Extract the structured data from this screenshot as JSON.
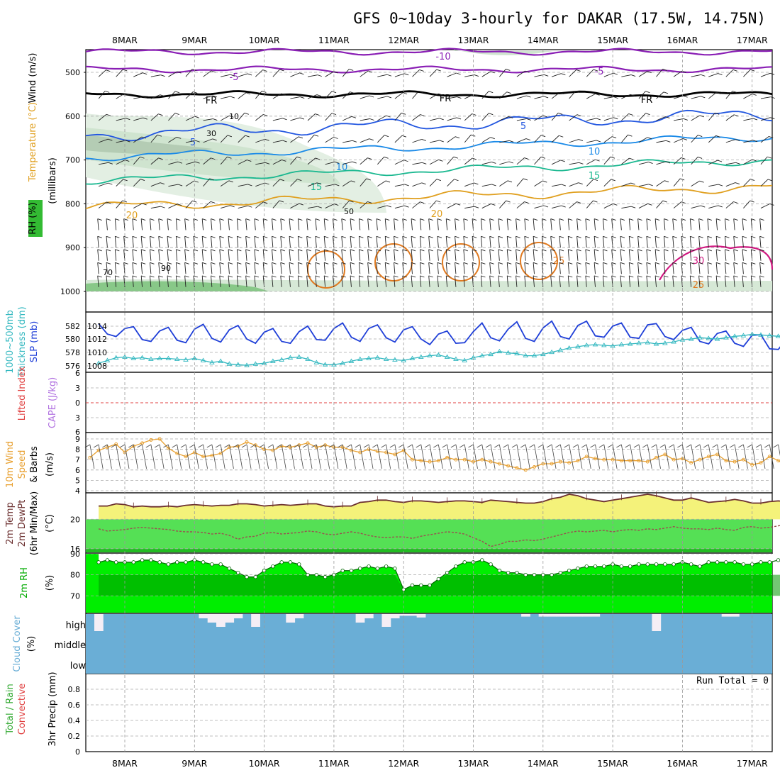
{
  "title": "GFS 0~10day 3-hourly for DAKAR (17.5W, 14.75N)",
  "colors": {
    "slp": "#1f3fd8",
    "thickness": "#33b8c0",
    "lifted": "#e04040",
    "cape": "#b070e0",
    "wind10m": "#e8a030",
    "temp": "#6b2f2f",
    "dewpt": "#9a5050",
    "tempFill": "#f4f27a",
    "rhFill": "#00ee00",
    "rhDark": "#009900",
    "cloud": "#6aaed6",
    "cloudGap": "#f5eef5",
    "iso_m10": "#8a1fb5",
    "iso_m5": "#8a1fb5",
    "iso_0": "#000000",
    "iso_5": "#2256e0",
    "iso_10": "#1a8ae8",
    "iso_15": "#1ab890",
    "iso_20": "#e0a020",
    "iso_25": "#e07a20",
    "iso_30": "#d01880"
  },
  "dates": [
    "8MAR",
    "9MAR",
    "10MAR",
    "11MAR",
    "12MAR",
    "13MAR",
    "14MAR",
    "15MAR",
    "16MAR",
    "17MAR"
  ],
  "panels": {
    "upper": {
      "labels": [
        "Wind (m/s)",
        "Temperature (°C)",
        "RH (%)",
        "(millibars)"
      ],
      "ticks": [
        "500",
        "600",
        "700",
        "800",
        "900",
        "1000"
      ],
      "isotherm_labels": [
        "-10",
        "-5",
        "FR",
        "5",
        "10",
        "15",
        "20",
        "25",
        "30"
      ],
      "rh_labels": [
        "10",
        "30",
        "50",
        "70",
        "90"
      ]
    },
    "slp": {
      "labels": [
        "1000~500mb",
        "Thickness (dm)",
        "SLP (mb)"
      ],
      "left_ticks": [
        "582",
        "580",
        "578",
        "576"
      ],
      "right_ticks": [
        "1014",
        "1012",
        "1010",
        "1008"
      ]
    },
    "li": {
      "labels": [
        "Lifted Index",
        "CAPE (J/kg)"
      ],
      "ticks": [
        "6",
        "3",
        "0",
        "3",
        "6"
      ]
    },
    "wind": {
      "labels": [
        "10m Wind",
        "Speed",
        "& Barbs",
        "(m/s)"
      ],
      "ticks": [
        "9",
        "8",
        "7",
        "6",
        "5",
        "4"
      ]
    },
    "temp": {
      "labels": [
        "2m Temp",
        "2m DewPt",
        "(6hr Min/Max)",
        "(°C)"
      ],
      "ticks": [
        "20",
        "16"
      ]
    },
    "rh": {
      "labels": [
        "2m RH",
        "(%)"
      ],
      "ticks": [
        "90",
        "80",
        "70"
      ]
    },
    "cloud": {
      "labels": [
        "Cloud Cover",
        "(%)"
      ],
      "ticks": [
        "high",
        "middle",
        "low"
      ]
    },
    "precip": {
      "labels": [
        "Total / Rain",
        "Convective",
        "3hr Precip (mm)"
      ],
      "ticks": [
        "0.8",
        "0.6",
        "0.4",
        "0.2",
        "0"
      ],
      "run_total": "Run Total = 0"
    }
  },
  "chart_data": [
    {
      "type": "line",
      "title": "Sea level pressure / 1000~500mb thickness",
      "x_unit": "3-hourly steps from 7MAR 12Z",
      "series": [
        {
          "name": "SLP (mb)",
          "axis": "right",
          "ylim": [
            1007,
            1016
          ],
          "values": [
            1014.8,
            1013.1,
            1012.7,
            1014.0,
            1014.3,
            1012.2,
            1011.9,
            1013.6,
            1014.2,
            1012.1,
            1011.7,
            1013.9,
            1014.7,
            1012.4,
            1011.8,
            1013.8,
            1014.5,
            1012.3,
            1011.6,
            1013.4,
            1014.0,
            1011.9,
            1011.6,
            1013.5,
            1014.4,
            1012.2,
            1012.1,
            1014.0,
            1014.9,
            1012.6,
            1011.9,
            1014.0,
            1014.6,
            1012.5,
            1011.8,
            1013.8,
            1014.3,
            1012.3,
            1011.4,
            1013.1,
            1013.6,
            1011.6,
            1011.7,
            1013.5,
            1014.9,
            1012.5,
            1012.0,
            1013.9,
            1015.1,
            1012.4,
            1011.9,
            1014.1,
            1015.2,
            1012.7,
            1012.3,
            1014.5,
            1015.2,
            1012.8,
            1012.6,
            1014.4,
            1014.9,
            1012.6,
            1012.4,
            1014.6,
            1014.8,
            1012.7,
            1012.2,
            1013.7,
            1014.2,
            1011.9,
            1011.5,
            1013.2,
            1013.6,
            1011.6,
            1011.1,
            1012.9,
            1013.0,
            1010.7,
            1010.6,
            1012.4,
            1012.1,
            1009.7,
            1009.1,
            1010.4,
            1010.0,
            1008.7,
            1008.0,
            1009.9,
            1010.6,
            1008.4,
            1007.9,
            1009.8,
            1010.0,
            1007.6,
            1007.3,
            1009.0
          ]
        },
        {
          "name": "Thickness (dm)",
          "axis": "left",
          "ylim": [
            575.5,
            583.5
          ],
          "values": [
            576.7,
            577.1,
            577.5,
            577.6,
            577.4,
            577.5,
            577.3,
            577.4,
            577.4,
            577.3,
            577.2,
            577.4,
            577.1,
            576.8,
            577.0,
            576.6,
            576.5,
            576.4,
            576.6,
            576.7,
            577.0,
            577.2,
            577.5,
            577.6,
            577.3,
            576.8,
            576.5,
            576.5,
            576.7,
            577.0,
            577.3,
            577.4,
            577.5,
            577.3,
            577.2,
            577.1,
            577.4,
            577.6,
            577.8,
            577.9,
            577.6,
            577.3,
            577.1,
            577.5,
            577.8,
            578.0,
            578.4,
            578.2,
            578.1,
            577.8,
            577.8,
            578.0,
            578.3,
            578.6,
            578.9,
            579.1,
            579.3,
            579.4,
            579.3,
            579.2,
            579.4,
            579.5,
            579.6,
            579.7,
            579.5,
            579.6,
            579.8,
            580.1,
            580.2,
            580.4,
            580.3,
            580.2,
            580.4,
            580.6,
            580.7,
            580.9,
            580.8,
            580.7,
            580.6,
            580.9,
            581.3,
            581.6,
            581.4,
            581.2,
            581.6,
            582.0,
            582.4,
            582.3,
            581.7,
            581.6,
            582.0,
            582.7,
            583.0,
            583.0,
            582.5,
            581.8
          ]
        }
      ]
    },
    {
      "type": "line",
      "title": "10m Wind Speed",
      "ylim": [
        4,
        9
      ],
      "series": [
        {
          "name": "Speed (m/s)",
          "values": [
            7.2,
            7.9,
            8.2,
            8.5,
            7.7,
            8.3,
            8.6,
            8.9,
            9.0,
            8.1,
            7.6,
            7.3,
            7.7,
            7.3,
            7.4,
            7.6,
            8.2,
            8.3,
            8.7,
            8.4,
            8.0,
            7.9,
            8.3,
            8.2,
            8.4,
            8.6,
            8.2,
            8.4,
            8.2,
            8.2,
            7.9,
            7.7,
            8.0,
            7.8,
            7.7,
            7.5,
            7.9,
            7.0,
            6.9,
            6.8,
            6.9,
            7.2,
            7.0,
            7.0,
            6.8,
            7.0,
            6.8,
            6.6,
            6.4,
            6.2,
            6.0,
            6.3,
            6.6,
            6.6,
            6.8,
            6.7,
            6.9,
            7.3,
            7.1,
            7.0,
            7.0,
            6.9,
            6.9,
            6.9,
            6.8,
            7.2,
            7.5,
            7.0,
            7.1,
            6.7,
            7.0,
            7.3,
            7.5,
            6.9,
            6.8,
            7.0,
            6.5,
            6.7,
            7.3,
            6.9,
            6.4,
            6.0,
            5.6,
            5.9,
            5.5,
            6.3,
            5.5,
            4.8,
            4.2,
            5.2,
            6.3,
            5.5,
            5.9,
            6.8,
            5.2,
            4.6,
            4.5,
            5.5,
            6.4,
            6.2
          ]
        }
      ]
    },
    {
      "type": "line",
      "title": "2m Temperature / Dew Point",
      "ylim": [
        15.5,
        23.5
      ],
      "series": [
        {
          "name": "2m Temp (°C)",
          "values": [
            21.8,
            21.8,
            22.1,
            22.0,
            21.7,
            21.8,
            21.7,
            21.7,
            21.8,
            21.7,
            21.9,
            22.0,
            21.9,
            21.8,
            21.9,
            21.9,
            22.1,
            22.1,
            22.0,
            21.8,
            21.9,
            22.0,
            21.9,
            22.0,
            22.1,
            22.1,
            21.8,
            21.7,
            21.8,
            21.8,
            22.3,
            22.4,
            22.6,
            22.6,
            22.4,
            22.3,
            22.5,
            22.5,
            22.4,
            22.3,
            22.4,
            22.5,
            22.5,
            22.4,
            22.3,
            22.6,
            22.5,
            22.4,
            22.3,
            22.2,
            22.2,
            22.4,
            22.8,
            23.0,
            23.4,
            23.2,
            22.8,
            22.6,
            22.4,
            22.6,
            22.8,
            23.0,
            23.2,
            23.4,
            23.2,
            22.9,
            22.6,
            22.6,
            22.9,
            22.6,
            22.3,
            22.4,
            22.5,
            22.7,
            22.5,
            22.2,
            22.2,
            22.4,
            22.5,
            22.4,
            22.3,
            22.6,
            23.0,
            23.2,
            23.5,
            23.0,
            22.8,
            22.9,
            22.8,
            23.6,
            23.8,
            23.5,
            23.2,
            23.0
          ]
        },
        {
          "name": "2m DewPt (°C)",
          "values": [
            18.7,
            18.4,
            18.5,
            18.6,
            18.8,
            18.9,
            18.8,
            18.7,
            18.6,
            18.4,
            18.3,
            18.3,
            18.2,
            18.0,
            18.1,
            17.8,
            17.3,
            17.6,
            17.7,
            18.1,
            18.2,
            18.0,
            18.1,
            18.2,
            18.4,
            18.3,
            18.0,
            17.9,
            18.1,
            18.3,
            18.1,
            17.8,
            17.6,
            17.5,
            17.6,
            17.6,
            17.4,
            17.7,
            17.9,
            18.1,
            18.3,
            18.2,
            18.0,
            17.5,
            17.0,
            16.3,
            16.6,
            17.0,
            17.0,
            17.2,
            17.1,
            17.3,
            17.6,
            17.9,
            18.2,
            18.4,
            18.3,
            18.4,
            18.5,
            18.3,
            18.5,
            18.6,
            18.5,
            18.7,
            18.6,
            18.8,
            19.0,
            18.8,
            18.7,
            18.7,
            18.6,
            18.8,
            18.6,
            18.5,
            18.9,
            19.0,
            18.8,
            18.9,
            19.1,
            19.3,
            19.3,
            19.2,
            19.2,
            19.1,
            19.0,
            19.0,
            18.8,
            18.9,
            18.9,
            19.0,
            19.2,
            19.0,
            19.0,
            18.9,
            18.2,
            18.0,
            17.5,
            17.4
          ]
        }
      ]
    },
    {
      "type": "area",
      "title": "2m RH",
      "ylim": [
        62,
        90
      ],
      "series": [
        {
          "name": "2m RH (%)",
          "values": [
            86,
            87,
            86,
            86,
            86,
            87,
            87,
            86,
            85,
            86,
            86,
            87,
            86,
            85,
            85,
            83,
            81,
            79,
            79,
            82,
            84,
            86,
            86,
            85,
            80,
            80,
            79,
            80,
            82,
            82,
            83,
            84,
            83,
            84,
            83,
            73,
            75,
            75,
            75,
            78,
            81,
            84,
            86,
            86,
            87,
            85,
            82,
            81,
            81,
            80,
            80,
            80,
            80,
            81,
            82,
            83,
            84,
            84,
            84,
            85,
            84,
            84,
            85,
            85,
            85,
            85,
            85,
            86,
            85,
            84,
            86,
            86,
            86,
            86,
            85,
            85,
            86,
            86,
            87,
            86,
            80,
            82,
            85,
            85,
            84,
            83,
            84,
            81,
            76,
            79,
            81,
            82,
            79,
            76,
            75
          ]
        }
      ]
    },
    {
      "type": "bar",
      "title": "Cloud Cover",
      "levels": [
        "high",
        "middle",
        "low"
      ],
      "note": "low and middle cloud 100% throughout; high cloud varies",
      "series": [
        {
          "name": "high cloud (%)",
          "values": [
            100,
            0,
            100,
            100,
            100,
            100,
            100,
            100,
            100,
            100,
            100,
            100,
            100,
            75,
            50,
            25,
            50,
            75,
            100,
            25,
            100,
            100,
            100,
            50,
            75,
            100,
            100,
            100,
            100,
            100,
            100,
            50,
            75,
            100,
            25,
            75,
            90,
            90,
            80,
            100,
            100,
            100,
            100,
            100,
            100,
            100,
            100,
            100,
            100,
            100,
            85,
            100,
            85,
            85,
            85,
            85,
            85,
            85,
            85,
            100,
            100,
            100,
            100,
            100,
            100,
            0,
            100,
            100,
            100,
            100,
            100,
            100,
            100,
            85,
            85,
            100,
            100,
            100,
            100,
            100,
            100,
            100,
            100,
            100,
            100,
            100,
            100,
            100,
            100,
            100,
            25,
            100,
            75,
            85,
            100,
            100
          ]
        }
      ]
    },
    {
      "type": "line",
      "title": "Lifted Index / CAPE",
      "ylim": [
        -6,
        6
      ],
      "series": [
        {
          "name": "Lifted Index",
          "values": [
            6.0,
            6.0,
            6.0,
            6.0,
            5.9,
            5.9,
            5.9,
            6.0,
            6.0,
            6.0,
            5.9,
            6.0,
            6.0,
            5.9,
            6.0,
            6.0,
            6.0,
            6.0,
            5.9,
            5.9,
            6.0,
            6.0,
            6.0,
            5.8,
            6.0,
            6.0,
            5.9,
            6.0,
            6.0,
            6.0,
            6.0,
            5.9,
            5.9,
            5.9,
            6.0,
            6.0,
            5.9,
            5.4,
            5.4,
            5.5,
            5.6,
            5.8,
            5.7,
            5.8,
            5.8,
            5.8,
            5.7,
            5.9,
            5.8,
            5.9,
            5.9,
            6.0,
            6.0,
            6.0,
            6.0,
            5.9,
            5.7,
            5.5,
            5.3,
            5.1,
            5.0,
            4.9,
            5.0,
            5.0,
            5.2,
            5.2,
            5.1,
            4.8,
            4.7,
            5.0,
            5.3,
            5.6,
            5.7,
            5.8,
            5.9,
            6.0,
            5.9,
            5.7,
            5.4,
            5.4,
            5.4,
            5.5,
            5.6,
            5.9
          ]
        }
      ]
    },
    {
      "type": "table",
      "title": "Precipitation",
      "ylim": [
        0,
        1
      ],
      "series": [
        {
          "name": "3hr Precip (mm)",
          "values": [
            0
          ]
        }
      ]
    }
  ]
}
